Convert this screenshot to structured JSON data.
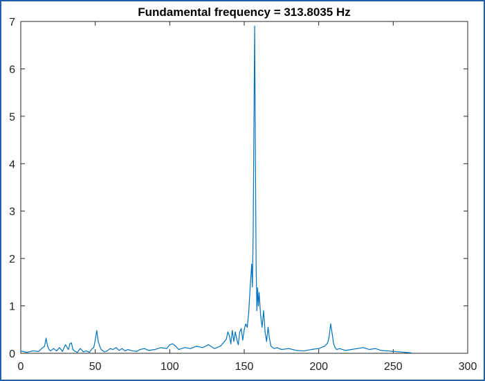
{
  "chart_data": {
    "type": "line",
    "title": "Fundamental frequency = 313.8035 Hz",
    "xlabel": "",
    "ylabel": "",
    "xlim": [
      0,
      300
    ],
    "ylim": [
      0,
      7
    ],
    "xticks": [
      0,
      50,
      100,
      150,
      200,
      250,
      300
    ],
    "yticks": [
      0,
      1,
      2,
      3,
      4,
      5,
      6,
      7
    ],
    "grid": false,
    "colors": {
      "line": "#0072bd",
      "axes": "#262626"
    },
    "series": [
      {
        "x": [
          0,
          4,
          8,
          12,
          14,
          16,
          17,
          18,
          19,
          20,
          22,
          24,
          26,
          28,
          30,
          32,
          33,
          34,
          35,
          36,
          38,
          40,
          42,
          44,
          46,
          48,
          49,
          50,
          51,
          52,
          53,
          54,
          56,
          58,
          60,
          62,
          64,
          66,
          68,
          70,
          72,
          75,
          78,
          80,
          83,
          86,
          90,
          94,
          98,
          100,
          102,
          104,
          106,
          110,
          114,
          118,
          122,
          126,
          130,
          134,
          136,
          138,
          139,
          140,
          141,
          142,
          143,
          144,
          145,
          146,
          147,
          148,
          149,
          150,
          151,
          152,
          153,
          154,
          155,
          155.5,
          156,
          156.5,
          157,
          157.5,
          158,
          158.5,
          159,
          159.5,
          160,
          161,
          162,
          163,
          164,
          165,
          166,
          167,
          168,
          170,
          172,
          175,
          180,
          185,
          190,
          195,
          200,
          204,
          206,
          207,
          208,
          209,
          210,
          211,
          212,
          214,
          218,
          222,
          226,
          230,
          234,
          238,
          242,
          246,
          250,
          254,
          258,
          262
        ],
        "y": [
          0.05,
          0.02,
          0.05,
          0.04,
          0.1,
          0.15,
          0.32,
          0.15,
          0.08,
          0.05,
          0.1,
          0.05,
          0.12,
          0.04,
          0.18,
          0.08,
          0.2,
          0.22,
          0.08,
          0.05,
          0.02,
          0.1,
          0.03,
          0.05,
          0.02,
          0.1,
          0.12,
          0.28,
          0.48,
          0.25,
          0.15,
          0.08,
          0.03,
          0.05,
          0.1,
          0.08,
          0.12,
          0.06,
          0.1,
          0.05,
          0.08,
          0.05,
          0.04,
          0.08,
          0.1,
          0.06,
          0.08,
          0.12,
          0.1,
          0.18,
          0.2,
          0.15,
          0.08,
          0.12,
          0.1,
          0.15,
          0.12,
          0.18,
          0.1,
          0.15,
          0.22,
          0.3,
          0.45,
          0.38,
          0.2,
          0.48,
          0.25,
          0.45,
          0.3,
          0.18,
          0.45,
          0.52,
          0.28,
          0.5,
          0.62,
          0.55,
          0.85,
          1.4,
          1.88,
          1.4,
          2.5,
          4.8,
          6.9,
          4.2,
          1.8,
          0.9,
          1.38,
          1.0,
          1.28,
          0.8,
          0.55,
          0.9,
          0.45,
          0.25,
          0.55,
          0.3,
          0.15,
          0.1,
          0.12,
          0.08,
          0.1,
          0.06,
          0.05,
          0.08,
          0.1,
          0.15,
          0.22,
          0.35,
          0.62,
          0.42,
          0.2,
          0.12,
          0.08,
          0.1,
          0.06,
          0.08,
          0.1,
          0.12,
          0.08,
          0.1,
          0.06,
          0.05,
          0.04,
          0.03,
          0.02,
          0.01
        ]
      }
    ]
  }
}
